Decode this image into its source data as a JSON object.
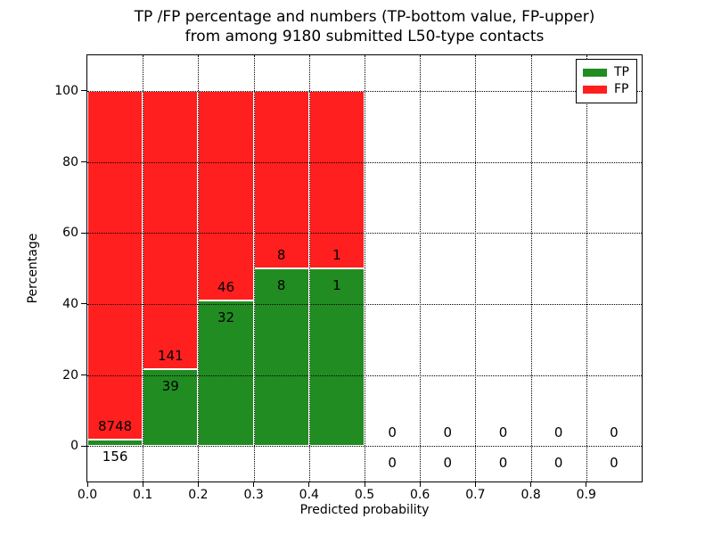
{
  "figure": {
    "title_lines": [
      "TP /FP percentage and numbers (TP-bottom value, FP-upper)",
      "from among 9180 submitted L50-type contacts"
    ]
  },
  "chart_data": {
    "type": "bar",
    "stacked": true,
    "title": "TP /FP percentage and numbers (TP-bottom value, FP-upper) from among 9180 submitted L50-type contacts",
    "xlabel": "Predicted probability",
    "ylabel": "Percentage",
    "total_submitted": 9180,
    "xlim": [
      0.0,
      1.0
    ],
    "ylim": [
      -10,
      110
    ],
    "x_tick_labels": [
      "0.0",
      "0.1",
      "0.2",
      "0.3",
      "0.4",
      "0.5",
      "0.6",
      "0.7",
      "0.8",
      "0.9"
    ],
    "x_tick_values": [
      0.0,
      0.1,
      0.2,
      0.3,
      0.4,
      0.5,
      0.6,
      0.7,
      0.8,
      0.9
    ],
    "y_tick_values": [
      0,
      20,
      40,
      60,
      80,
      100
    ],
    "grid": "dotted-black-over-bars",
    "bar_edge_color": "#ffffff",
    "colors": {
      "tp": "#218c21",
      "fp": "#ff1f1f"
    },
    "legend": {
      "position": "upper-right",
      "entries": [
        {
          "label": "TP",
          "color": "#218c21"
        },
        {
          "label": "FP",
          "color": "#ff1f1f"
        }
      ]
    },
    "categories": [
      "0.0-0.1",
      "0.1-0.2",
      "0.2-0.3",
      "0.3-0.4",
      "0.4-0.5",
      "0.5-0.6",
      "0.6-0.7",
      "0.7-0.8",
      "0.8-0.9",
      "0.9-1.0"
    ],
    "series": [
      {
        "name": "TP",
        "values": [
          156,
          39,
          32,
          8,
          1,
          0,
          0,
          0,
          0,
          0
        ]
      },
      {
        "name": "FP",
        "values": [
          8748,
          141,
          46,
          8,
          1,
          0,
          0,
          0,
          0,
          0
        ]
      }
    ],
    "bins": [
      {
        "x0": 0.0,
        "x1": 0.1,
        "tp": 156,
        "fp": 8748,
        "tp_pct": 1.75,
        "fp_pct": 98.25
      },
      {
        "x0": 0.1,
        "x1": 0.2,
        "tp": 39,
        "fp": 141,
        "tp_pct": 21.67,
        "fp_pct": 78.33
      },
      {
        "x0": 0.2,
        "x1": 0.3,
        "tp": 32,
        "fp": 46,
        "tp_pct": 41.03,
        "fp_pct": 58.97
      },
      {
        "x0": 0.3,
        "x1": 0.4,
        "tp": 8,
        "fp": 8,
        "tp_pct": 50.0,
        "fp_pct": 50.0
      },
      {
        "x0": 0.4,
        "x1": 0.5,
        "tp": 1,
        "fp": 1,
        "tp_pct": 50.0,
        "fp_pct": 50.0
      },
      {
        "x0": 0.5,
        "x1": 0.6,
        "tp": 0,
        "fp": 0,
        "tp_pct": 0,
        "fp_pct": 0
      },
      {
        "x0": 0.6,
        "x1": 0.7,
        "tp": 0,
        "fp": 0,
        "tp_pct": 0,
        "fp_pct": 0
      },
      {
        "x0": 0.7,
        "x1": 0.8,
        "tp": 0,
        "fp": 0,
        "tp_pct": 0,
        "fp_pct": 0
      },
      {
        "x0": 0.8,
        "x1": 0.9,
        "tp": 0,
        "fp": 0,
        "tp_pct": 0,
        "fp_pct": 0
      },
      {
        "x0": 0.9,
        "x1": 1.0,
        "tp": 0,
        "fp": 0,
        "tp_pct": 0,
        "fp_pct": 0
      }
    ]
  }
}
